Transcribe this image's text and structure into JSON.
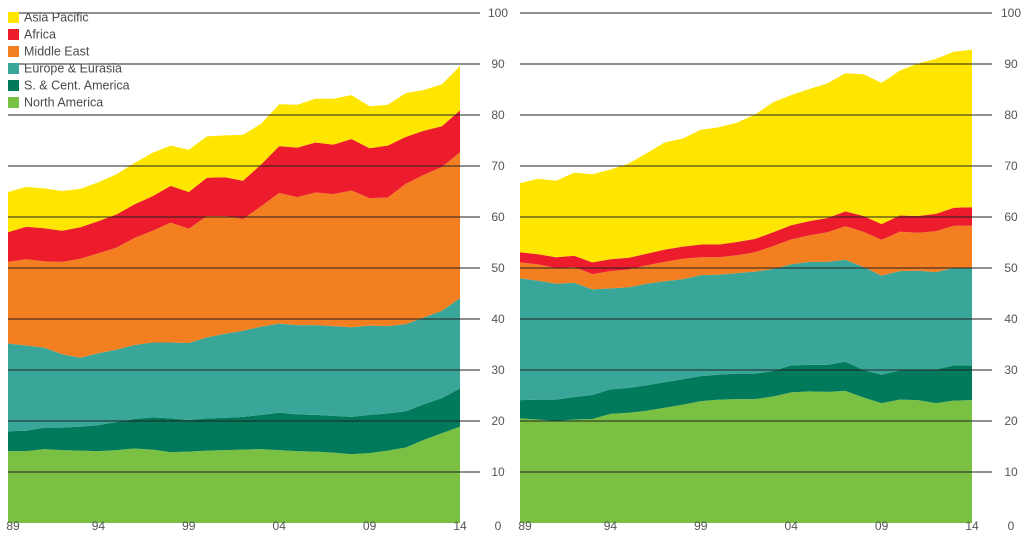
{
  "colors": {
    "North America": "#7ac143",
    "S. & Cent. America": "#007a5a",
    "Europe & Eurasia": "#3aa69a",
    "Middle East": "#f47f20",
    "Africa": "#ec1c2d",
    "Asia Pacific": "#ffe600",
    "grid": "#222222"
  },
  "legend": [
    "Asia Pacific",
    "Africa",
    "Middle East",
    "Europe & Eurasia",
    "S. & Cent. America",
    "North America"
  ],
  "chart_data": [
    {
      "type": "area",
      "stacked": true,
      "x": [
        1989,
        1990,
        1991,
        1992,
        1993,
        1994,
        1995,
        1996,
        1997,
        1998,
        1999,
        2000,
        2001,
        2002,
        2003,
        2004,
        2005,
        2006,
        2007,
        2008,
        2009,
        2010,
        2011,
        2012,
        2013,
        2014
      ],
      "x_tick_labels": [
        "89",
        "94",
        "99",
        "04",
        "09",
        "14"
      ],
      "x_tick_years": [
        1989,
        1994,
        1999,
        2004,
        2009,
        2014
      ],
      "ylim": [
        0,
        100
      ],
      "y_ticks": [
        0,
        10,
        20,
        30,
        40,
        50,
        60,
        70,
        80,
        90,
        100
      ],
      "grid": true,
      "legend_position": "top-left",
      "series": [
        {
          "name": "North America",
          "values": [
            14.1,
            14.1,
            14.5,
            14.3,
            14.2,
            14.1,
            14.3,
            14.6,
            14.4,
            13.9,
            14.0,
            14.2,
            14.3,
            14.4,
            14.5,
            14.3,
            14.1,
            14.0,
            13.8,
            13.5,
            13.7,
            14.2,
            14.8,
            16.3,
            17.6,
            18.9
          ]
        },
        {
          "name": "S. & Cent. America",
          "values": [
            3.9,
            4.0,
            4.2,
            4.4,
            4.7,
            5.1,
            5.5,
            5.8,
            6.3,
            6.6,
            6.2,
            6.3,
            6.3,
            6.4,
            6.7,
            7.3,
            7.2,
            7.2,
            7.2,
            7.3,
            7.5,
            7.3,
            7.1,
            7.0,
            6.9,
            7.5
          ]
        },
        {
          "name": "Europe & Eurasia",
          "values": [
            17.2,
            16.7,
            15.7,
            14.4,
            13.5,
            14.1,
            14.2,
            14.5,
            14.7,
            14.9,
            15.1,
            15.9,
            16.5,
            16.9,
            17.3,
            17.5,
            17.5,
            17.6,
            17.6,
            17.6,
            17.5,
            17.1,
            17.1,
            17.0,
            17.1,
            17.7
          ]
        },
        {
          "name": "Middle East",
          "values": [
            16.0,
            16.9,
            16.9,
            18.1,
            19.4,
            19.6,
            20.0,
            21.0,
            21.9,
            23.5,
            22.4,
            23.8,
            23.1,
            21.9,
            23.6,
            25.6,
            25.1,
            26.0,
            25.9,
            26.8,
            25.0,
            25.2,
            27.5,
            28.0,
            28.2,
            28.6
          ]
        },
        {
          "name": "Africa",
          "values": [
            5.8,
            6.4,
            6.5,
            6.1,
            6.2,
            6.3,
            6.5,
            6.6,
            6.8,
            7.2,
            7.2,
            7.5,
            7.6,
            7.5,
            8.2,
            9.2,
            9.7,
            9.8,
            9.7,
            10.1,
            9.8,
            10.2,
            9.2,
            8.6,
            8.0,
            8.2
          ]
        },
        {
          "name": "Asia Pacific",
          "values": [
            7.9,
            7.8,
            7.8,
            7.8,
            7.5,
            7.6,
            7.9,
            8.1,
            8.5,
            7.9,
            8.3,
            8.1,
            8.2,
            9.0,
            8.0,
            8.2,
            8.4,
            8.6,
            9.0,
            8.6,
            8.2,
            8.0,
            8.6,
            8.0,
            8.2,
            8.7
          ]
        }
      ]
    },
    {
      "type": "area",
      "stacked": true,
      "x": [
        1989,
        1990,
        1991,
        1992,
        1993,
        1994,
        1995,
        1996,
        1997,
        1998,
        1999,
        2000,
        2001,
        2002,
        2003,
        2004,
        2005,
        2006,
        2007,
        2008,
        2009,
        2010,
        2011,
        2012,
        2013,
        2014
      ],
      "x_tick_labels": [
        "89",
        "94",
        "99",
        "04",
        "09",
        "14"
      ],
      "x_tick_years": [
        1989,
        1994,
        1999,
        2004,
        2009,
        2014
      ],
      "ylim": [
        0,
        100
      ],
      "y_ticks": [
        0,
        10,
        20,
        30,
        40,
        50,
        60,
        70,
        80,
        90,
        100
      ],
      "grid": true,
      "series": [
        {
          "name": "North America",
          "values": [
            20.5,
            20.3,
            20.0,
            20.3,
            20.4,
            21.4,
            21.6,
            22.0,
            22.6,
            23.2,
            23.9,
            24.2,
            24.3,
            24.3,
            24.8,
            25.6,
            25.8,
            25.7,
            25.9,
            24.6,
            23.5,
            24.2,
            24.1,
            23.5,
            24.0,
            24.1
          ]
        },
        {
          "name": "S. & Cent. America",
          "values": [
            3.6,
            3.9,
            4.2,
            4.4,
            4.7,
            4.8,
            4.9,
            5.0,
            5.0,
            5.0,
            4.9,
            4.9,
            5.0,
            5.0,
            5.0,
            5.3,
            5.2,
            5.3,
            5.7,
            5.4,
            5.6,
            5.7,
            6.0,
            6.6,
            6.9,
            6.8
          ]
        },
        {
          "name": "Europe & Eurasia",
          "values": [
            23.9,
            23.3,
            22.7,
            22.4,
            20.7,
            19.8,
            19.7,
            19.9,
            19.8,
            19.6,
            19.8,
            19.6,
            19.7,
            20.0,
            20.0,
            19.8,
            20.2,
            20.2,
            20.0,
            20.2,
            19.4,
            19.5,
            19.4,
            19.1,
            19.1,
            19.0
          ]
        },
        {
          "name": "Middle East",
          "values": [
            3.1,
            3.2,
            3.1,
            3.1,
            3.0,
            3.4,
            3.5,
            3.6,
            3.8,
            4.0,
            3.5,
            3.4,
            3.5,
            3.8,
            4.5,
            4.9,
            5.2,
            5.8,
            6.6,
            6.9,
            7.0,
            7.7,
            7.4,
            8.0,
            8.3,
            8.4
          ]
        },
        {
          "name": "Africa",
          "values": [
            2.0,
            2.0,
            2.1,
            2.2,
            2.3,
            2.3,
            2.3,
            2.3,
            2.4,
            2.4,
            2.5,
            2.5,
            2.6,
            2.6,
            2.7,
            2.8,
            2.8,
            2.8,
            2.9,
            3.1,
            3.1,
            3.2,
            3.3,
            3.4,
            3.5,
            3.6
          ]
        },
        {
          "name": "Asia Pacific",
          "values": [
            13.5,
            14.8,
            15.0,
            16.3,
            17.3,
            17.6,
            18.5,
            19.7,
            21.0,
            21.2,
            22.5,
            23.0,
            23.4,
            24.4,
            25.5,
            25.5,
            25.9,
            26.4,
            27.1,
            27.8,
            27.7,
            28.4,
            29.9,
            30.4,
            30.6,
            30.9
          ]
        }
      ]
    }
  ]
}
